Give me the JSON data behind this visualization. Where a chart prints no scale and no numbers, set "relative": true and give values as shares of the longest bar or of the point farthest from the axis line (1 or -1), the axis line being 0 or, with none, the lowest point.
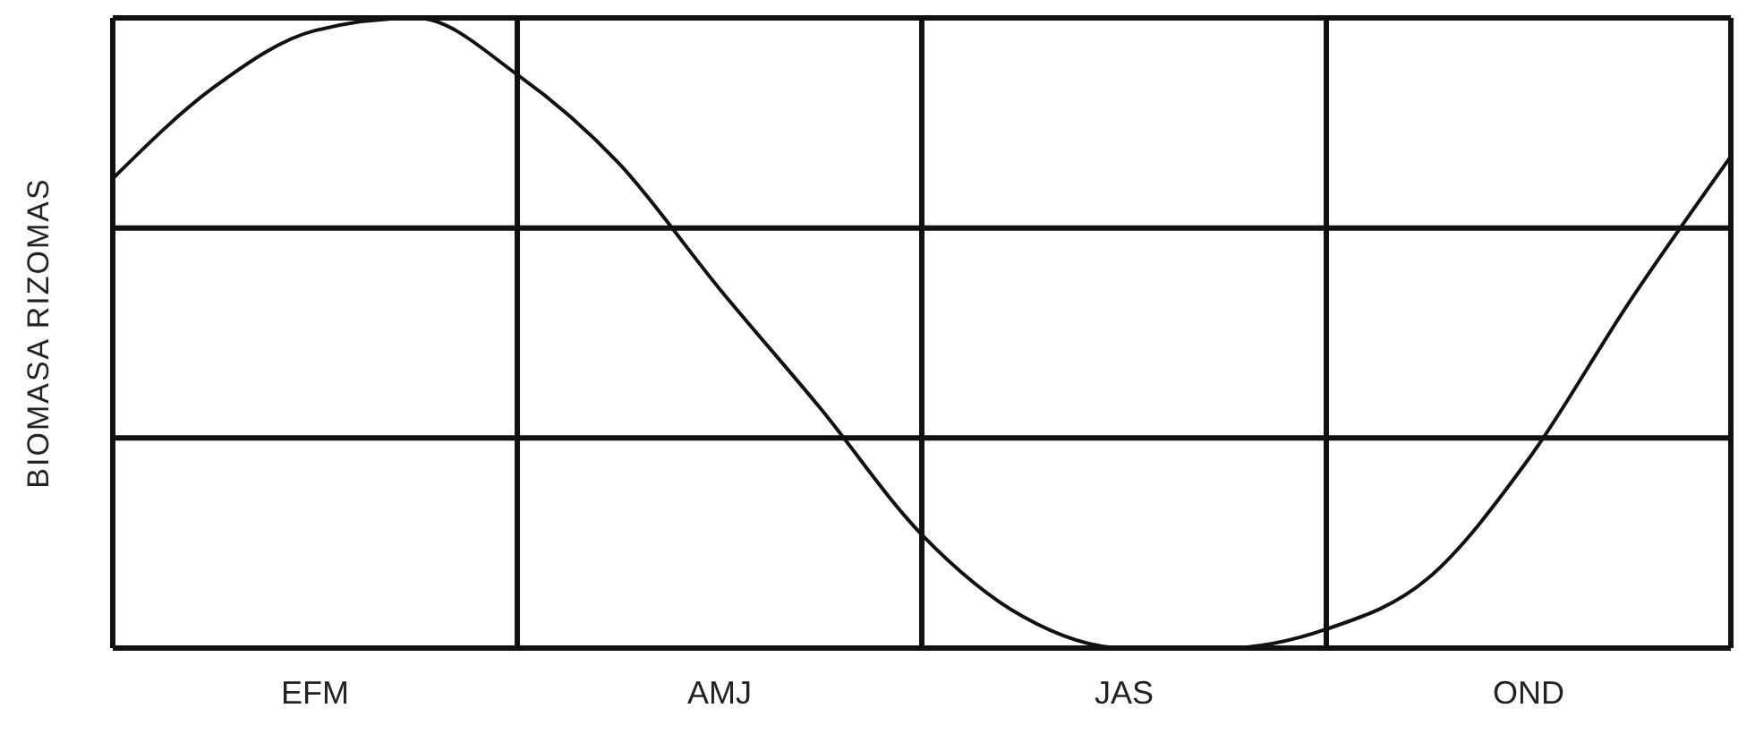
{
  "chart_data": {
    "type": "line",
    "relative": true,
    "ylabel": "BIOMASA RIZOMAS",
    "categories": [
      null,
      null,
      "EFM",
      null,
      null,
      null,
      "AMJ",
      null,
      null,
      null,
      "JAS",
      null,
      null,
      null,
      "OND",
      null,
      null
    ],
    "series": [
      {
        "color": "#111111",
        "values": [
          0.745,
          0.89,
          0.98,
          1.0,
          0.91,
          0.77,
          0.57,
          0.38,
          0.18,
          0.05,
          0,
          0,
          0.03,
          0.11,
          0.3,
          0.55,
          0.78
        ]
      }
    ],
    "grid": true,
    "marker": "none",
    "line_style": "solid"
  }
}
